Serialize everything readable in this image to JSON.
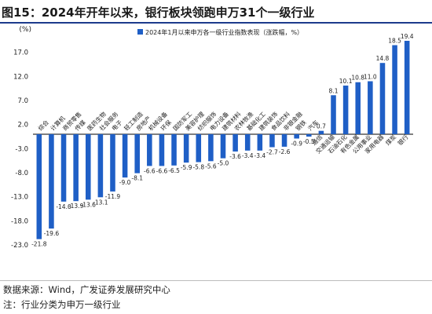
{
  "header": {
    "title": "图15：2024年开年以来，银行板块领跑申万31个一级行业"
  },
  "footer": {
    "source": "数据来源：Wind，广发证券发展研究中心",
    "note": "注：行业分类为申万一级行业"
  },
  "chart_data": {
    "type": "bar",
    "unit_label": "(%)",
    "legend": "2024年1月以来申万各一级行业指数表现（涨跌幅，%）",
    "legend_position": "top-left",
    "bar_color": "#1f5fc6",
    "grid": false,
    "ylim": [
      -23.0,
      19.4
    ],
    "yticks": [
      17.0,
      12.0,
      7.0,
      2.0,
      -3.0,
      -8.0,
      -13.0,
      -18.0,
      -23.0
    ],
    "ytick_labels": [
      "17.0",
      "12.0",
      "7.0",
      "2.0",
      "-3.0",
      "-8.0",
      "-13.0",
      "-18.0",
      "-23.0"
    ],
    "categories": [
      "综合",
      "计算机",
      "商贸零售",
      "传媒",
      "医药生物",
      "社会服务",
      "电子",
      "轻工制造",
      "房地产",
      "机械设备",
      "环保",
      "国防军工",
      "美容护理",
      "纺织服饰",
      "电力设备",
      "建筑材料",
      "农林牧渔",
      "基础化工",
      "建筑装饰",
      "食品饮料",
      "非银金融",
      "钢铁",
      "汽车",
      "通信",
      "交通运输",
      "石油石化",
      "有色金属",
      "公用事业",
      "家用电器",
      "煤炭",
      "银行"
    ],
    "values": [
      -21.8,
      -19.6,
      -14.0,
      -13.9,
      -13.6,
      -13.1,
      -11.9,
      -9.0,
      -8.1,
      -6.6,
      -6.6,
      -6.5,
      -5.9,
      -5.8,
      -5.6,
      -5.0,
      -3.6,
      -3.4,
      -3.4,
      -2.7,
      -2.6,
      -0.9,
      -0.5,
      0.7,
      8.1,
      10.1,
      10.8,
      11.0,
      14.8,
      18.5,
      19.4
    ],
    "value_labels": [
      "-21.8",
      "-19.6",
      "-14.0",
      "-13.9",
      "-13.6",
      "-13.1",
      "-11.9",
      "-9.0",
      "-8.1",
      "-6.6",
      "-6.6",
      "-6.5",
      "-5.9",
      "-5.8",
      "-5.6",
      "-5.0",
      "-3.6",
      "-3.4",
      "-3.4",
      "-2.7",
      "-2.6",
      "-0.9",
      "-0.5",
      "0.7",
      "8.1",
      "10.1",
      "10.8",
      "11.0",
      "14.8",
      "18.5",
      "19.4"
    ]
  }
}
